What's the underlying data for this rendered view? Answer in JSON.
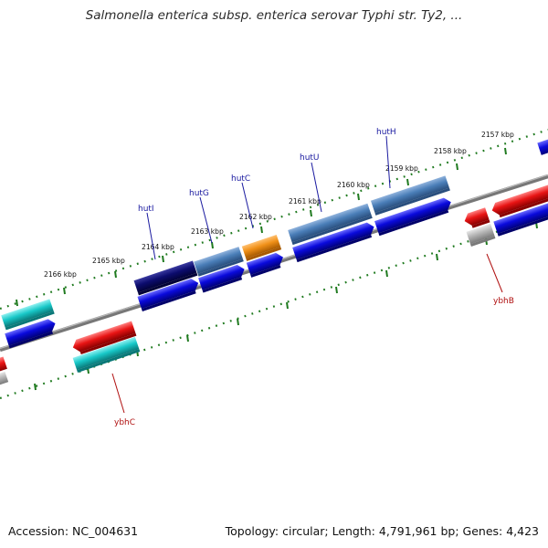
{
  "title": "Salmonella enterica subsp. enterica serovar Typhi str. Ty2, ...",
  "footer": {
    "accession": "Accession: NC_004631",
    "topology": "Topology: circular; Length: 4,791,961 bp; Genes: 4,423"
  },
  "colors": {
    "backbone": "#7a7a7a",
    "ruler_ticks": "#1f7a1f",
    "gene_label_blue": "#1a1aa0",
    "gene_label_red": "#b01010",
    "cds_blue": "#0a0adc",
    "hut_steelblue": "#4a7eb8",
    "hutI_navy": "#0c0c6e",
    "orange": "#f09018",
    "cyan": "#18c8c8",
    "red": "#e81414",
    "grey": "#b4b4b4"
  },
  "ruler_labels": [
    "2157 kbp",
    "2158 kbp",
    "2159 kbp",
    "2160 kbp",
    "2161 kbp",
    "2162 kbp",
    "2163 kbp",
    "2164 kbp",
    "2165 kbp",
    "2166 kbp"
  ],
  "gene_labels": [
    {
      "name": "hutH",
      "color": "blue"
    },
    {
      "name": "hutU",
      "color": "blue"
    },
    {
      "name": "hutC",
      "color": "blue"
    },
    {
      "name": "hutG",
      "color": "blue"
    },
    {
      "name": "hutI",
      "color": "blue"
    },
    {
      "name": "ybhB",
      "color": "red"
    },
    {
      "name": "ybhC",
      "color": "red"
    }
  ]
}
